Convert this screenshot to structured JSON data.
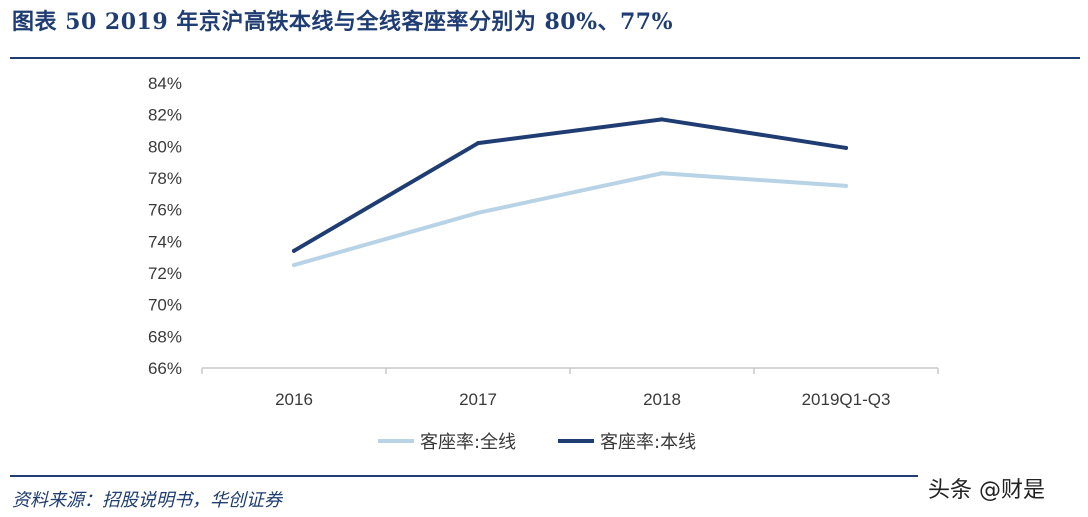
{
  "header": {
    "title": "图表 50   2019 年京沪高铁本线与全线客座率分别为 80%、77%"
  },
  "footer": {
    "source": "资料来源：招股说明书，华创证券",
    "watermark": "头条 @财是"
  },
  "colors": {
    "brand": "#1f3d73",
    "series_all": "#b8d3e6",
    "series_main": "#1f3d73",
    "axis": "#c8c8c8"
  },
  "chart_data": {
    "type": "line",
    "title": "",
    "xlabel": "",
    "ylabel": "",
    "categories": [
      "2016",
      "2017",
      "2018",
      "2019Q1-Q3"
    ],
    "ylim": [
      66,
      84
    ],
    "yticks": [
      66,
      68,
      70,
      72,
      74,
      76,
      78,
      80,
      82,
      84
    ],
    "ytick_format": "%",
    "grid": false,
    "legend_position": "bottom",
    "series": [
      {
        "name": "客座率:全线",
        "values": [
          72.5,
          75.8,
          78.3,
          77.5
        ]
      },
      {
        "name": "客座率:本线",
        "values": [
          73.4,
          80.2,
          81.7,
          79.9
        ]
      }
    ]
  }
}
